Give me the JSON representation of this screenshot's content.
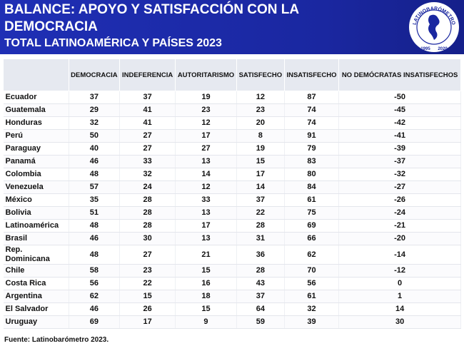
{
  "header": {
    "title": "BALANCE: APOYO Y SATISFACCIÓN CON LA DEMOCRACIA",
    "subtitle": "TOTAL LATINOAMÉRICA Y PAÍSES 2023",
    "logo": {
      "name": "LATINOBARÓMETRO",
      "start": "1995",
      "end": "2020"
    }
  },
  "table": {
    "columns": [
      "DEMOCRACIA",
      "INDEFERENCIA",
      "AUTORITARISMO",
      "SATISFECHO",
      "INSATISFECHO",
      "NO DEMÓCRATAS INSATISFECHOS"
    ],
    "rows": [
      [
        "Ecuador",
        37,
        37,
        19,
        12,
        87,
        -50
      ],
      [
        "Guatemala",
        29,
        41,
        23,
        23,
        74,
        -45
      ],
      [
        "Honduras",
        32,
        41,
        12,
        20,
        74,
        -42
      ],
      [
        "Perú",
        50,
        27,
        17,
        8,
        91,
        -41
      ],
      [
        "Paraguay",
        40,
        27,
        27,
        19,
        79,
        -39
      ],
      [
        "Panamá",
        46,
        33,
        13,
        15,
        83,
        -37
      ],
      [
        "Colombia",
        48,
        32,
        14,
        17,
        80,
        -32
      ],
      [
        "Venezuela",
        57,
        24,
        12,
        14,
        84,
        -27
      ],
      [
        "México",
        35,
        28,
        33,
        37,
        61,
        -26
      ],
      [
        "Bolivia",
        51,
        28,
        13,
        22,
        75,
        -24
      ],
      [
        "Latinoamérica",
        48,
        28,
        17,
        28,
        69,
        -21
      ],
      [
        "Brasil",
        46,
        30,
        13,
        31,
        66,
        -20
      ],
      [
        "Rep. Dominicana",
        48,
        27,
        21,
        36,
        62,
        -14
      ],
      [
        "Chile",
        58,
        23,
        15,
        28,
        70,
        -12
      ],
      [
        "Costa Rica",
        56,
        22,
        16,
        43,
        56,
        0
      ],
      [
        "Argentina",
        62,
        15,
        18,
        37,
        61,
        1
      ],
      [
        "El Salvador",
        46,
        26,
        15,
        64,
        32,
        14
      ],
      [
        "Uruguay",
        69,
        17,
        9,
        59,
        39,
        30
      ]
    ]
  },
  "footer": {
    "source": "Fuente: Latinobarómetro 2023."
  }
}
